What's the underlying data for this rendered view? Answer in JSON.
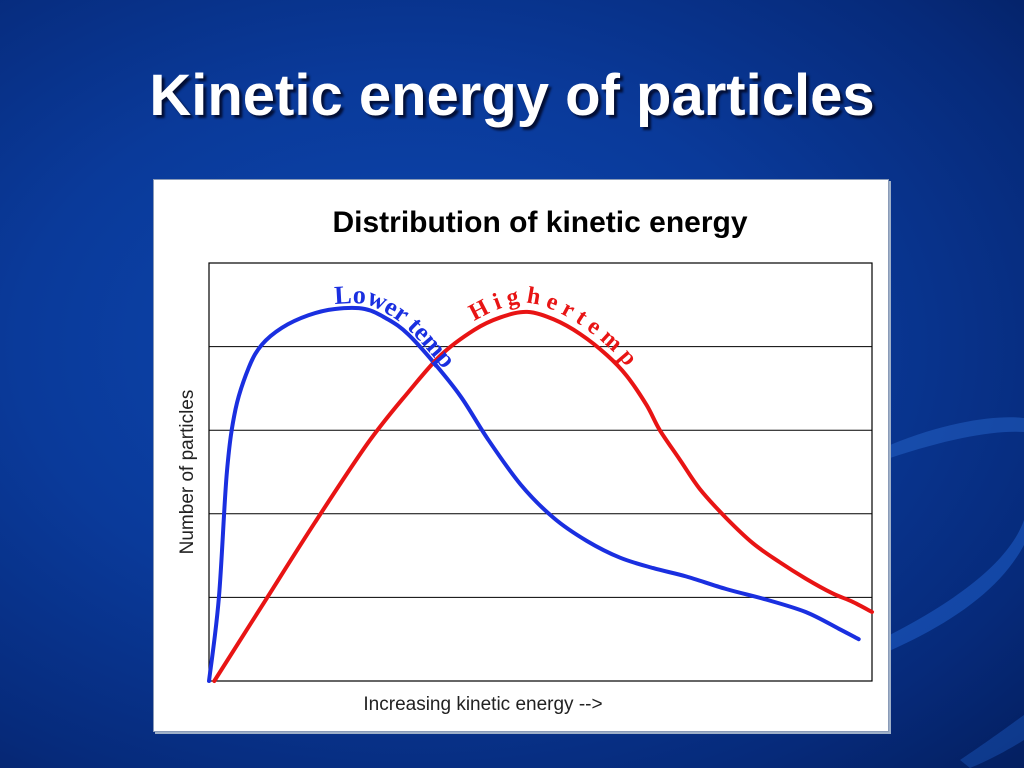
{
  "slide": {
    "title": "Kinetic energy of particles"
  },
  "colors": {
    "background": "#0a3a9a",
    "lower_temp": "#1a2fe0",
    "higher_temp": "#e81414",
    "grid": "#000000"
  },
  "chart_data": {
    "type": "line",
    "title": "Distribution of kinetic energy",
    "xlabel": "Increasing kinetic energy -->",
    "ylabel": "Number of particles",
    "xlim": [
      0,
      100
    ],
    "ylim": [
      0,
      100
    ],
    "grid": "horizontal",
    "legend": "none",
    "series": [
      {
        "name": "Lower temp",
        "color": "#1a2fe0",
        "points": [
          [
            0,
            0
          ],
          [
            1.5,
            20
          ],
          [
            2.7,
            50
          ],
          [
            4,
            65
          ],
          [
            6,
            75
          ],
          [
            8,
            80.5
          ],
          [
            11,
            84.5
          ],
          [
            15,
            87.5
          ],
          [
            19,
            89
          ],
          [
            23.5,
            89
          ],
          [
            27,
            86.5
          ],
          [
            30,
            83
          ],
          [
            34,
            76
          ],
          [
            38,
            68
          ],
          [
            42,
            58
          ],
          [
            47,
            47
          ],
          [
            52,
            39
          ],
          [
            57,
            33.5
          ],
          [
            62,
            29.5
          ],
          [
            67,
            27
          ],
          [
            72,
            25
          ],
          [
            78,
            22
          ],
          [
            84,
            19.5
          ],
          [
            90,
            16.5
          ],
          [
            95,
            12.5
          ],
          [
            98,
            10
          ]
        ]
      },
      {
        "name": "Higher temp",
        "color": "#e81414",
        "points": [
          [
            0.8,
            0
          ],
          [
            8,
            18
          ],
          [
            16,
            38
          ],
          [
            24,
            57
          ],
          [
            30,
            69
          ],
          [
            35,
            78
          ],
          [
            40,
            84
          ],
          [
            44,
            87
          ],
          [
            48,
            88.3
          ],
          [
            52,
            86.5
          ],
          [
            56,
            83
          ],
          [
            60,
            78
          ],
          [
            63,
            73
          ],
          [
            66,
            66
          ],
          [
            68,
            60
          ],
          [
            71,
            53
          ],
          [
            74,
            46
          ],
          [
            78,
            39
          ],
          [
            82,
            33
          ],
          [
            86,
            28.5
          ],
          [
            90,
            24.5
          ],
          [
            94,
            21
          ],
          [
            97,
            19
          ],
          [
            100,
            16.5
          ]
        ]
      }
    ],
    "annotations": [
      {
        "text": "Lower temp",
        "series": "Lower temp"
      },
      {
        "text": "H i g h e r   t e m p",
        "series": "Higher temp"
      }
    ]
  }
}
